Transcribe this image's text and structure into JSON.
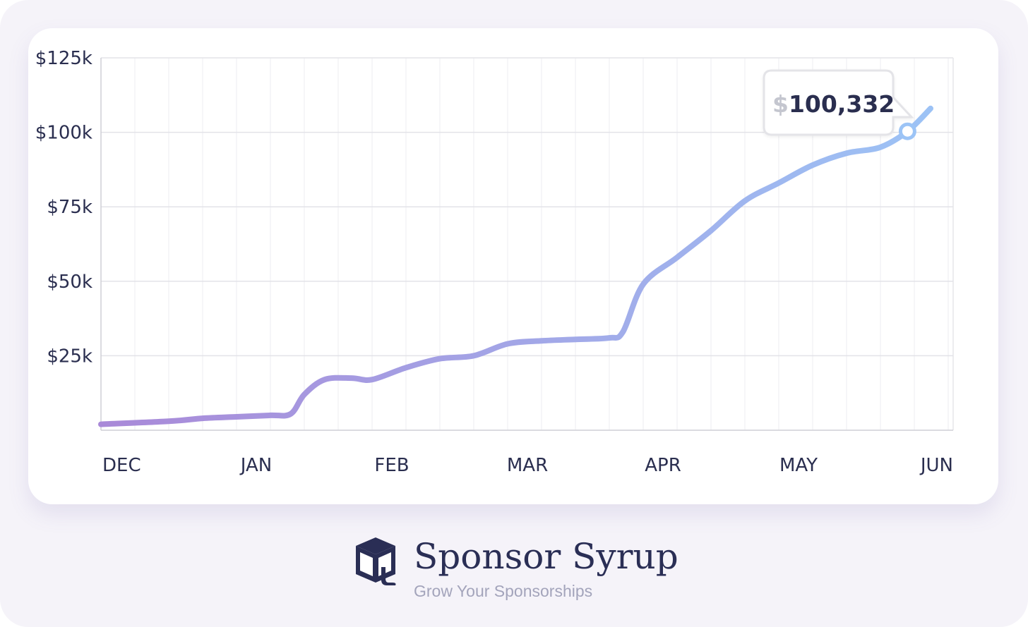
{
  "chart_data": {
    "type": "line",
    "title": "",
    "xlabel": "",
    "ylabel": "",
    "x_tick_labels": [
      "DEC",
      "JAN",
      "FEB",
      "MAR",
      "APR",
      "MAY",
      "JUN"
    ],
    "y_tick_labels": [
      "$25k",
      "$50k",
      "$75k",
      "$100k",
      "$125k"
    ],
    "y_ticks": [
      25000,
      50000,
      75000,
      100000,
      125000
    ],
    "ylim": [
      0,
      125000
    ],
    "x_unit": "months since start of DEC",
    "series": [
      {
        "name": "",
        "x": [
          0,
          0.5,
          0.75,
          1.0,
          1.25,
          1.4,
          1.5,
          1.65,
          1.85,
          2.0,
          2.25,
          2.5,
          2.75,
          3.0,
          3.25,
          3.5,
          3.75,
          3.85,
          4.0,
          4.25,
          4.5,
          4.75,
          5.0,
          5.25,
          5.5,
          5.75,
          5.95,
          6.12
        ],
        "values": [
          2000,
          3000,
          4000,
          4500,
          5000,
          5500,
          12000,
          17000,
          17500,
          17000,
          21000,
          24000,
          25000,
          29000,
          30000,
          30500,
          31000,
          33000,
          49000,
          58000,
          67000,
          77000,
          83000,
          89000,
          93000,
          95000,
          100332,
          108000
        ]
      }
    ],
    "callout": {
      "dollar": "$",
      "value": "100,332"
    },
    "colors": {
      "line_start": "#a989d8",
      "line_end": "#9cc4f6",
      "grid": "#e3e3e8",
      "text": "#2a2e4f"
    },
    "grid": true,
    "legend": "none"
  },
  "brand": {
    "name": "Sponsor Syrup",
    "tagline": "Grow Your Sponsorships",
    "logo_icon": "syrup-box-icon"
  }
}
